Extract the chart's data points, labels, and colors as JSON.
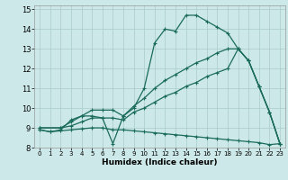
{
  "xlabel": "Humidex (Indice chaleur)",
  "bg_color": "#cce8e8",
  "grid_color": "#aacccc",
  "line_color": "#1a6b5a",
  "xlim": [
    -0.5,
    23.5
  ],
  "ylim": [
    8,
    15.2
  ],
  "xticks": [
    0,
    1,
    2,
    3,
    4,
    5,
    6,
    7,
    8,
    9,
    10,
    11,
    12,
    13,
    14,
    15,
    16,
    17,
    18,
    19,
    20,
    21,
    22,
    23
  ],
  "yticks": [
    8,
    9,
    10,
    11,
    12,
    13,
    14,
    15
  ],
  "line1_x": [
    0,
    1,
    2,
    3,
    4,
    5,
    6,
    7,
    8,
    9,
    10,
    11,
    12,
    13,
    14,
    15,
    16,
    17,
    18,
    19,
    20,
    21,
    22,
    23
  ],
  "line1_y": [
    8.9,
    8.8,
    8.9,
    9.4,
    9.6,
    9.6,
    9.5,
    8.2,
    9.6,
    10.0,
    11.0,
    13.3,
    14.0,
    13.9,
    14.7,
    14.7,
    14.4,
    14.1,
    13.8,
    13.0,
    12.4,
    11.1,
    9.8,
    8.2
  ],
  "line2_x": [
    0,
    2,
    3,
    4,
    5,
    6,
    7,
    8,
    9,
    10,
    11,
    12,
    13,
    14,
    15,
    16,
    17,
    18,
    19,
    20,
    21,
    22,
    23
  ],
  "line2_y": [
    9.0,
    9.0,
    9.3,
    9.6,
    9.9,
    9.9,
    9.9,
    9.6,
    10.1,
    10.5,
    11.0,
    11.4,
    11.7,
    12.0,
    12.3,
    12.5,
    12.8,
    13.0,
    13.0,
    12.4,
    11.1,
    9.8,
    8.2
  ],
  "line3_x": [
    0,
    2,
    3,
    4,
    5,
    6,
    7,
    8,
    9,
    10,
    11,
    12,
    13,
    14,
    15,
    16,
    17,
    18,
    19,
    20,
    21,
    22,
    23
  ],
  "line3_y": [
    9.0,
    9.0,
    9.1,
    9.3,
    9.5,
    9.5,
    9.5,
    9.4,
    9.8,
    10.0,
    10.3,
    10.6,
    10.8,
    11.1,
    11.3,
    11.6,
    11.8,
    12.0,
    13.0,
    12.4,
    11.1,
    9.8,
    8.2
  ],
  "line4_x": [
    0,
    1,
    2,
    3,
    4,
    5,
    6,
    7,
    8,
    9,
    10,
    11,
    12,
    13,
    14,
    15,
    16,
    17,
    18,
    19,
    20,
    21,
    22,
    23
  ],
  "line4_y": [
    8.9,
    8.8,
    8.85,
    8.9,
    8.95,
    9.0,
    9.0,
    8.9,
    8.9,
    8.85,
    8.8,
    8.75,
    8.7,
    8.65,
    8.6,
    8.55,
    8.5,
    8.45,
    8.4,
    8.35,
    8.3,
    8.25,
    8.15,
    8.2
  ]
}
